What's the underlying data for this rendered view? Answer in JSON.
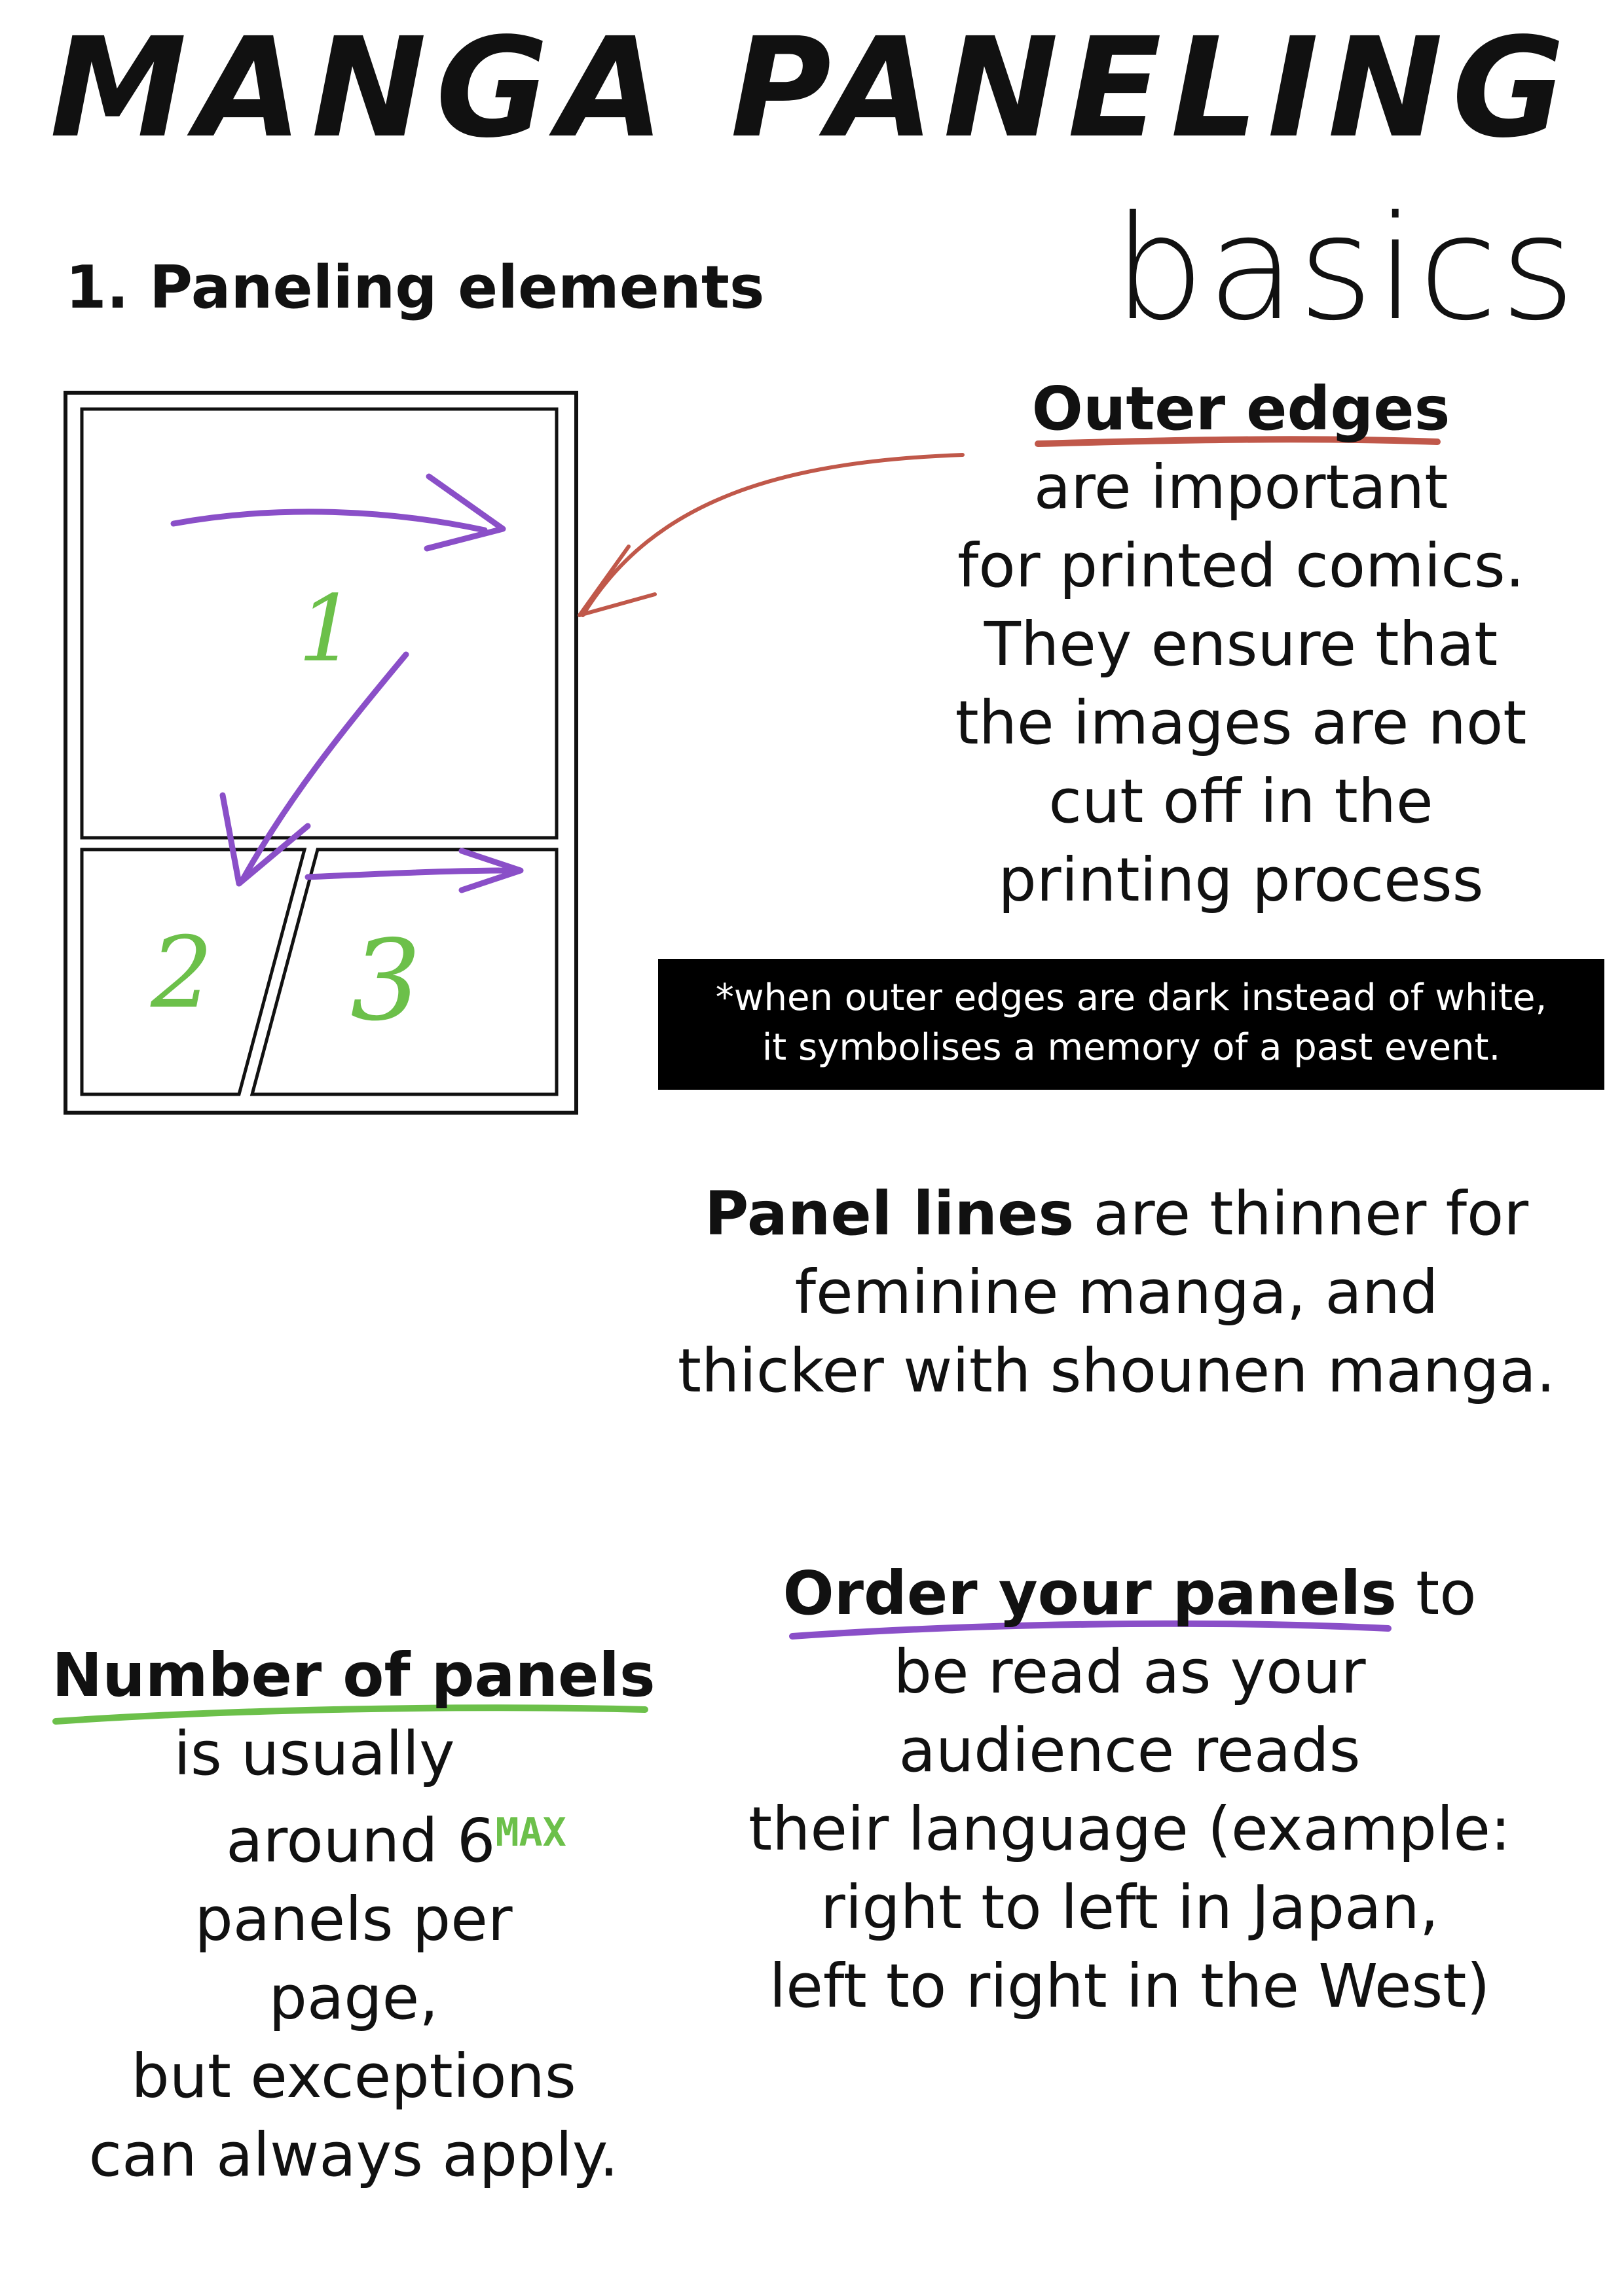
{
  "title": "MANGA PANELING",
  "subtitle": "basics",
  "section_heading": "1. Paneling elements",
  "diagram": {
    "panel_numbers": [
      "1",
      "2",
      "3"
    ],
    "colors": {
      "frame": "#111111",
      "reading_arrow": "#8a4fc8",
      "numbers": "#6cc04a",
      "pointer_arrow": "#c0584a"
    }
  },
  "outer_edges": {
    "heading": "Outer edges",
    "lines": [
      "are important",
      "for printed comics.",
      "They ensure that",
      "the images are not",
      "cut off in the",
      "printing process"
    ],
    "underline_color": "#c0584a"
  },
  "note": {
    "lines": [
      "*when outer edges are dark instead of white,",
      "it symbolises a memory of a past event."
    ]
  },
  "panel_lines": {
    "bold": "Panel lines",
    "rest": " are thinner for",
    "lines": [
      "feminine manga, and",
      "thicker with shounen manga."
    ]
  },
  "order_panels": {
    "bold": "Order your panels",
    "rest": " to",
    "lines": [
      "be read as your",
      "audience reads",
      "their language (example:",
      "right to left in Japan,",
      "left to right in the West)"
    ],
    "underline_color": "#8a4fc8"
  },
  "number_panels": {
    "heading": "Number of panels",
    "line1": "is usually",
    "line2": "around 6",
    "max_tag": "MAX",
    "lines": [
      "panels per",
      "page,",
      "but exceptions",
      "can always apply."
    ],
    "underline_color": "#6cc04a"
  }
}
